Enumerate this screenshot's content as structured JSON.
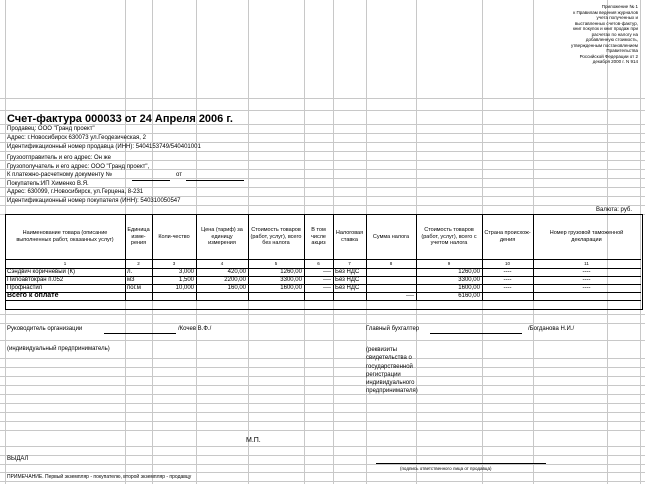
{
  "note": [
    "Приложение № 1",
    "к Правилам ведения журналов",
    "учета полученных и",
    "выставленных счетов-фактур,",
    "книг покупок и книг продаж при",
    "расчетах по налогу на",
    "добавленную стоимость,",
    "утвержденным постановлением",
    "Правительства",
    "Российской Федерации от 2",
    "декабря 2000 г. N 914"
  ],
  "title": "Счет-фактура 000033 от 24 Апреля 2006 г.",
  "info": [
    "Продавец: ООО \"Гранд проект\"",
    "Адрес: г.Новосибирск 630073 ул.Геодезическая, 2",
    "Идентификационный номер продавца (ИНН): 5404153749/540401001",
    "Грузоотправитель и его адрес: Он же",
    "Грузополучатель и его адрес: ООО \"Гранд проект\",",
    "К платежно-расчетному документу №",
    "Покупатель:ИП Хименко В.Я.",
    "Адрес: 630099, г.Новосибирск, ул.Герцена, 8-231",
    "Идентификационный номер покупателя (ИНН): 540310050547"
  ],
  "payment_doc_from": "от",
  "currency": "Валюта: руб.",
  "table": {
    "headers": [
      "Наименование товара (описание выполненных работ, оказанных услуг)",
      "Единица изме-рения",
      "Коли-чество",
      "Цена (тариф) за единицу измерения",
      "Стоимость товаров (работ, услуг), всего без налога",
      "В том числе акциз",
      "Налоговая ставка",
      "Сумма налога",
      "Стоимость товаров (работ, услуг), всего с учетом налога",
      "Страна происхож-дения",
      "Номер грузовой таможенной декларации"
    ],
    "numbers": [
      "1",
      "2",
      "3",
      "4",
      "5",
      "6",
      "7",
      "8",
      "9",
      "10",
      "11"
    ],
    "rows": [
      [
        "Сэндвич коричневый (К)",
        "л.",
        "3,000",
        "420,00",
        "1260,00",
        "----",
        "Без НДС",
        "",
        "1260,00",
        "----",
        "----"
      ],
      [
        "Пилоавтокран п.052",
        "м3",
        "1,500",
        "2200,00",
        "3300,00",
        "----",
        "Без НДС",
        "",
        "3300,00",
        "----",
        "----"
      ],
      [
        "Профнастил",
        "пог.м",
        "10,000",
        "160,00",
        "1600,00",
        "----",
        "Без НДС",
        "",
        "1600,00",
        "----",
        "----"
      ]
    ],
    "total_label": "Всего к оплате",
    "total_tax": "----",
    "total_sum": "6160,00"
  },
  "signatures": {
    "head_label": "Руководитель организации",
    "head_name": "/Кочев В.Ф./",
    "accountant_label": "Главный бухгалтер",
    "accountant_name": "/Богданова Н.И./",
    "entrepreneur": "(индивидуальный предприниматель)",
    "requisites": "(реквизиты свидетельства о государственной регистрации индивидуального предпринимателя)",
    "stamp": "М.П.",
    "issued": "ВЫДАЛ",
    "responsible_caption": "(подпись ответственного лица от продавца)",
    "footnote": "ПРИМЕЧАНИЕ. Первый экземпляр - покупателю, второй экземпляр - продавцу"
  }
}
